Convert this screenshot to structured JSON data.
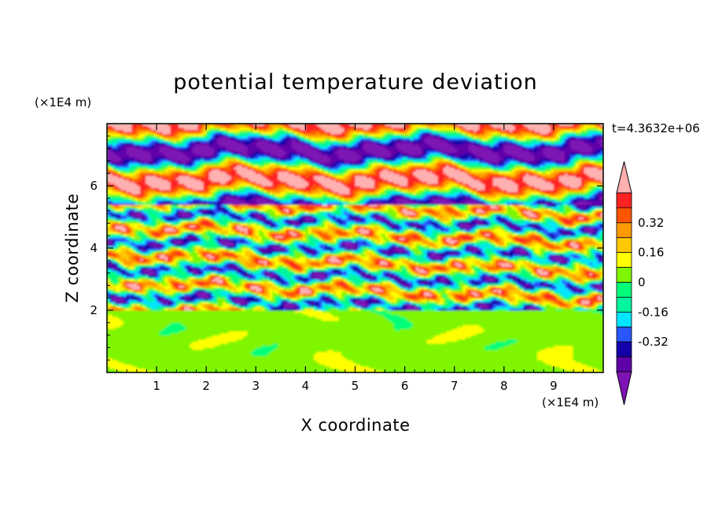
{
  "chart_data": {
    "type": "heatmap",
    "title": "potential temperature deviation",
    "xlabel": "X coordinate",
    "ylabel": "Z coordinate",
    "x_unit": "(×1E4 m)",
    "y_unit": "(×1E4 m)",
    "time_label": "t=4.3632e+06",
    "xlim": [
      0,
      10
    ],
    "ylim": [
      0,
      8
    ],
    "x_ticks": [
      1,
      2,
      3,
      4,
      5,
      6,
      7,
      8,
      9
    ],
    "y_ticks": [
      2,
      4,
      6
    ],
    "colorbar": {
      "levels": [
        -0.48,
        -0.4,
        -0.32,
        -0.24,
        -0.16,
        -0.08,
        0,
        0.08,
        0.16,
        0.24,
        0.32,
        0.4,
        0.48
      ],
      "colors": [
        "#7e12b4",
        "#5e00a8",
        "#1200a8",
        "#2a55ff",
        "#00e6ff",
        "#00f5a0",
        "#00ff78",
        "#7ff500",
        "#ffff00",
        "#ffc800",
        "#ff9900",
        "#ff5500",
        "#ff2222",
        "#ffb0b0"
      ],
      "tick_labels": [
        "0.32",
        "0.16",
        "0",
        "-0.16",
        "-0.32"
      ],
      "tick_values": [
        0.32,
        0.16,
        0,
        -0.16,
        -0.32
      ],
      "extend": "both"
    },
    "regions": [
      {
        "z_range": [
          0,
          2
        ],
        "description_values": [
          0,
          0.08
        ],
        "dominant": "near-zero"
      },
      {
        "z_range": [
          2,
          5.5
        ],
        "description_values": [
          -0.48,
          0.48
        ],
        "dominant": "mixed"
      },
      {
        "z_range": [
          5.5,
          8
        ],
        "description_values": [
          -0.48,
          0.48
        ],
        "dominant": "alternating bands"
      }
    ]
  }
}
